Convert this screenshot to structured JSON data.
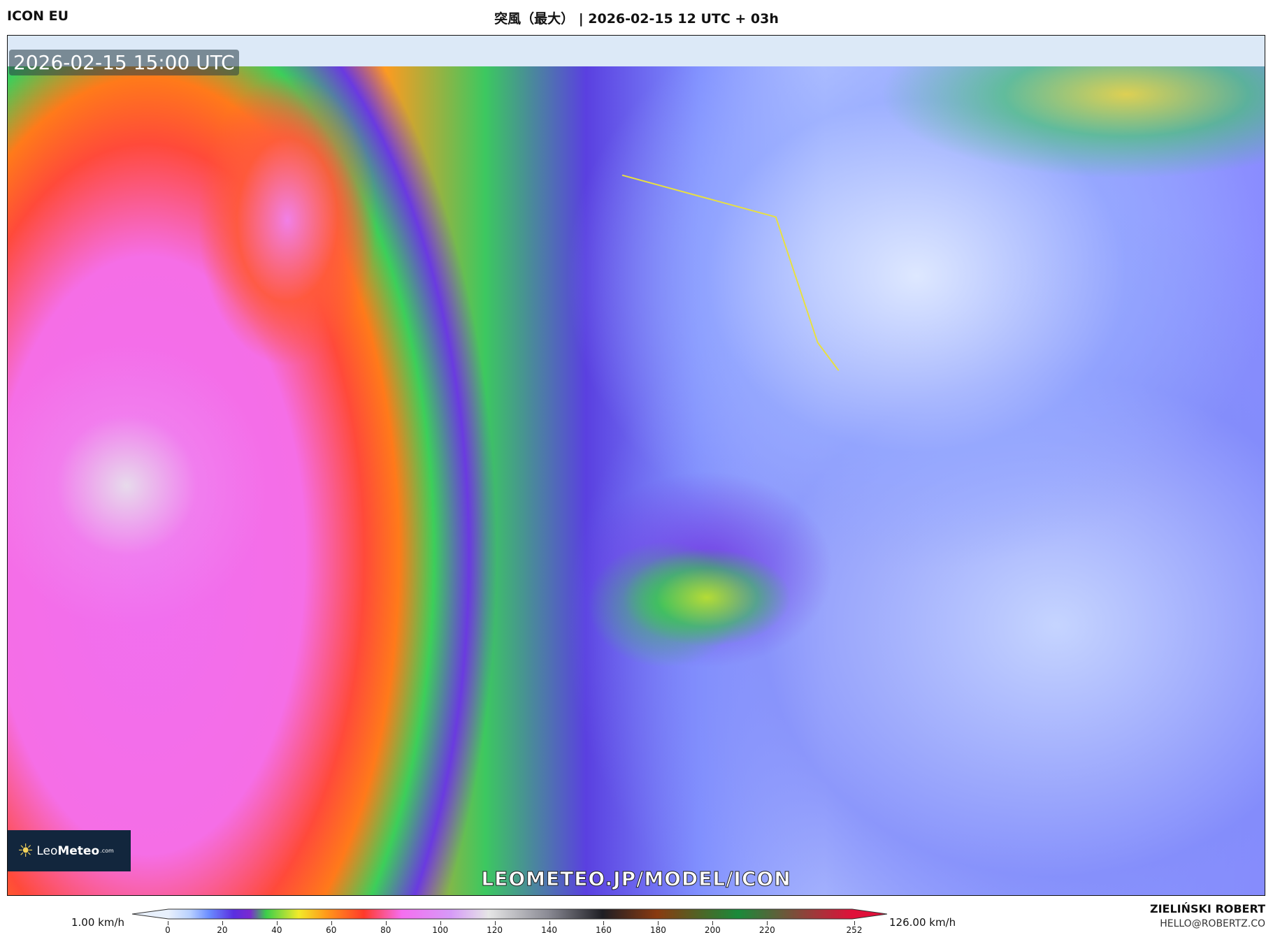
{
  "header": {
    "model": "ICON EU",
    "title": "突風（最大） | 2026-02-15 12 UTC + 03h"
  },
  "map": {
    "valid_time": "2026-02-15 15:00 UTC",
    "watermark": "LEOMETEO.JP/MODEL/ICON",
    "logo": {
      "brand_light": "Leo",
      "brand_bold": "Meteo",
      "suffix": ".com"
    }
  },
  "colorbar": {
    "min_label": "1.00 km/h",
    "max_label": "126.00 km/h",
    "range": [
      0,
      252
    ],
    "ticks": [
      "0",
      "20",
      "40",
      "60",
      "80",
      "100",
      "120",
      "140",
      "160",
      "180",
      "200",
      "220",
      "252"
    ],
    "stops": [
      {
        "v": 0,
        "c": "#e8f0fc"
      },
      {
        "v": 8,
        "c": "#b8d0ff"
      },
      {
        "v": 15,
        "c": "#6a8cff"
      },
      {
        "v": 24,
        "c": "#5a2ee0"
      },
      {
        "v": 30,
        "c": "#7a2ad0"
      },
      {
        "v": 36,
        "c": "#3ccf4a"
      },
      {
        "v": 48,
        "c": "#f2ea2a"
      },
      {
        "v": 58,
        "c": "#ff9a1a"
      },
      {
        "v": 72,
        "c": "#ff3a2a"
      },
      {
        "v": 86,
        "c": "#f56ef0"
      },
      {
        "v": 104,
        "c": "#d69af8"
      },
      {
        "v": 118,
        "c": "#e6e6e6"
      },
      {
        "v": 140,
        "c": "#8a8a94"
      },
      {
        "v": 160,
        "c": "#1e1e24"
      },
      {
        "v": 180,
        "c": "#8a3a10"
      },
      {
        "v": 210,
        "c": "#1a8a3a"
      },
      {
        "v": 252,
        "c": "#e0103a"
      }
    ]
  },
  "footer": {
    "author": "ZIELIŃSKI ROBERT",
    "email": "HELLO@ROBERTZ.CO"
  }
}
